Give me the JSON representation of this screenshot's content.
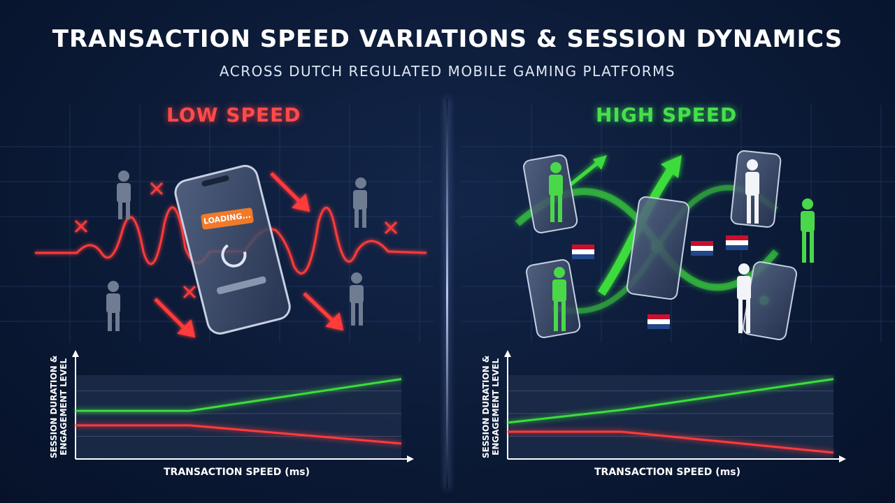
{
  "header": {
    "title": "TRANSACTION SPEED VARIATIONS & SESSION DYNAMICS",
    "subtitle": "ACROSS DUTCH REGULATED MOBILE GAMING PLATFORMS"
  },
  "panels": {
    "low": {
      "label": "LOW SPEED",
      "loading_text": "LOADING..."
    },
    "high": {
      "label": "HIGH SPEED"
    }
  },
  "colors": {
    "low": "#ff3b3b",
    "high": "#3ddc3d",
    "background": "#0b1a36"
  },
  "chart_data": [
    {
      "type": "line",
      "title": "",
      "xlabel": "TRANSACTION SPEED (ms)",
      "ylabel": "SESSION DURATION & ENGAGEMENT LEVEL",
      "ylabel_lines": [
        "SESSION DURATION &",
        "ENGAGEMENT LEVEL"
      ],
      "x": [
        0,
        0.35,
        1
      ],
      "ylim": [
        0,
        1
      ],
      "grid": true,
      "series": [
        {
          "color": "#3ddc3d",
          "values": [
            0.53,
            0.53,
            0.88
          ]
        },
        {
          "color": "#ff3b3b",
          "values": [
            0.37,
            0.37,
            0.17
          ]
        }
      ]
    },
    {
      "type": "line",
      "title": "",
      "xlabel": "TRANSACTION SPEED (ms)",
      "ylabel": "SESSION DURATION & ENGAGEMENT LEVEL",
      "ylabel_lines": [
        "SESSION DURATION &",
        "ENGAGEMENT LEVEL"
      ],
      "x": [
        0,
        0.35,
        1
      ],
      "ylim": [
        0,
        1
      ],
      "grid": true,
      "series": [
        {
          "color": "#3ddc3d",
          "values": [
            0.4,
            0.54,
            0.88
          ]
        },
        {
          "color": "#ff3b3b",
          "values": [
            0.3,
            0.3,
            0.07
          ]
        }
      ]
    }
  ]
}
